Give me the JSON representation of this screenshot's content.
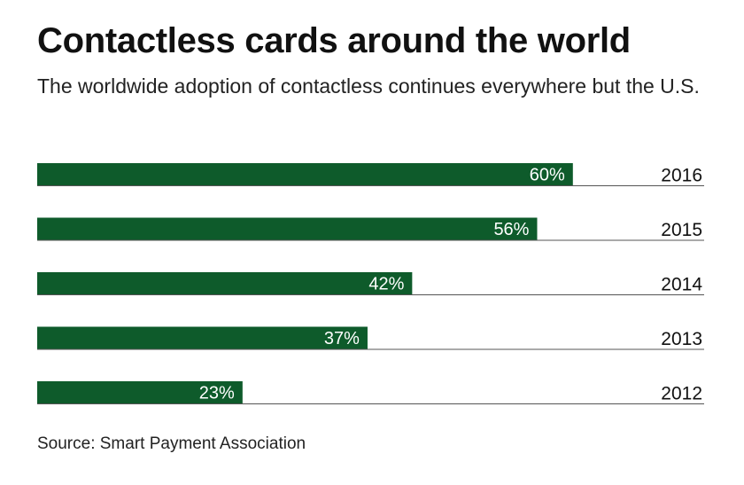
{
  "title": "Contactless cards around the world",
  "subtitle": "The worldwide adoption of contactless continues everywhere but the U.S.",
  "source": "Source: Smart Payment Association",
  "colors": {
    "bar": "#0e5b2b",
    "bar_label": "#ffffff",
    "baseline": "#555555",
    "category_label": "#111111"
  },
  "chart_data": {
    "type": "bar",
    "orientation": "horizontal",
    "categories": [
      "2016",
      "2015",
      "2014",
      "2013",
      "2012"
    ],
    "values": [
      60,
      56,
      42,
      37,
      23
    ],
    "value_labels": [
      "60%",
      "56%",
      "42%",
      "37%",
      "23%"
    ],
    "unit": "%",
    "xlim": [
      0,
      75
    ],
    "title": "",
    "xlabel": "",
    "ylabel": "",
    "grid": false,
    "legend": "none"
  }
}
